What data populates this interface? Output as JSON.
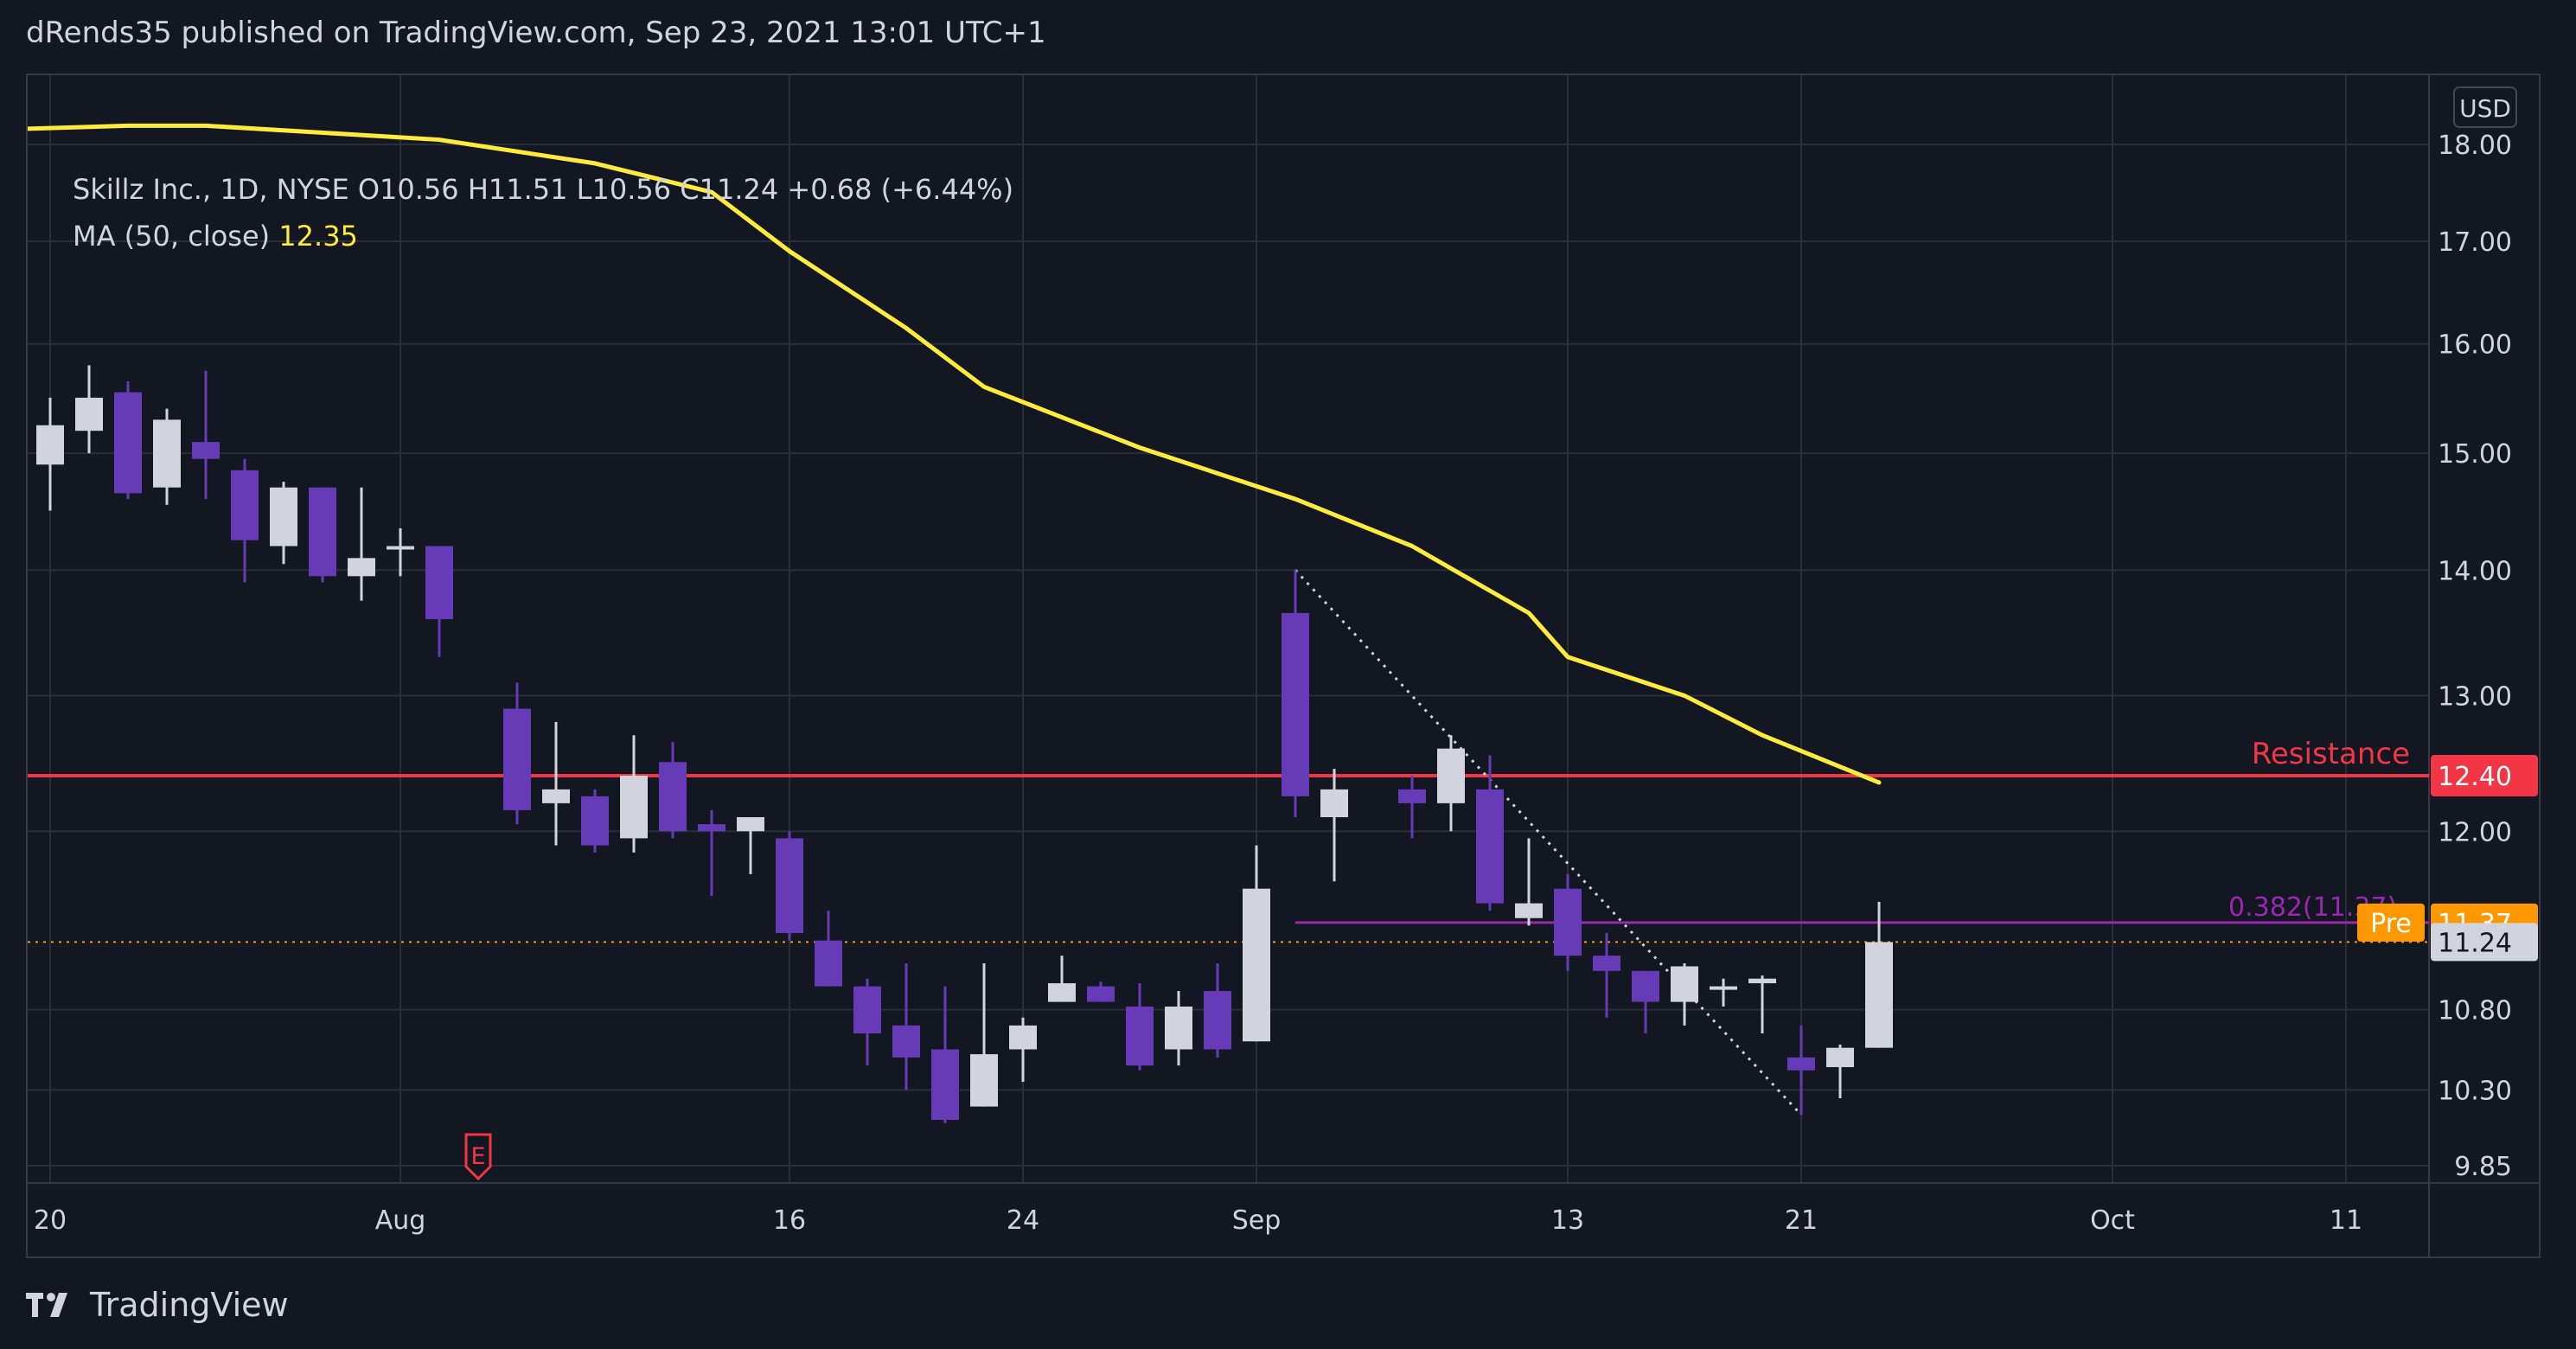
{
  "header": {
    "banner": "dRends35 published on TradingView.com, Sep 23, 2021 13:01 UTC+1"
  },
  "legend": {
    "line1": "Skillz Inc., 1D, NYSE  O10.56  H11.51  L10.56  C11.24  +0.68 (+6.44%)",
    "ma_label": "MA (50, close)",
    "ma_value": "12.35"
  },
  "price_axis": {
    "currency_button": "USD",
    "ticks": [
      "18.00",
      "17.00",
      "16.00",
      "15.00",
      "14.00",
      "13.00",
      "12.00",
      "10.80",
      "10.30",
      "9.85"
    ]
  },
  "time_axis": {
    "ticks": [
      "20",
      "Aug",
      "16",
      "24",
      "Sep",
      "13",
      "21",
      "Oct",
      "11"
    ]
  },
  "annotations": {
    "resistance_label": "Resistance",
    "resistance_price": "12.40",
    "fib_label": "0.382(11.37)",
    "pre_label": "Pre",
    "pre_price": "11.37",
    "last_price": "11.24",
    "earnings_marker": "E"
  },
  "colors": {
    "background": "#131722",
    "up_candle": "#d1d4dc",
    "down_candle": "#673ab7",
    "ma_line": "#ffeb3b",
    "resistance": "#f23645",
    "fib_line": "#9c27b0",
    "pre_badge": "#ff9800"
  },
  "footer": {
    "brand": "TradingView"
  },
  "chart_data": {
    "type": "candlestick",
    "symbol": "Skillz Inc.",
    "interval": "1D",
    "exchange": "NYSE",
    "scale": "log",
    "ylim": [
      9.85,
      18.2
    ],
    "candles": [
      {
        "date": "2021-07-20",
        "o": 14.9,
        "h": 15.5,
        "l": 14.5,
        "c": 15.25
      },
      {
        "date": "2021-07-21",
        "o": 15.2,
        "h": 15.8,
        "l": 15.0,
        "c": 15.5
      },
      {
        "date": "2021-07-22",
        "o": 15.55,
        "h": 15.65,
        "l": 14.6,
        "c": 14.65
      },
      {
        "date": "2021-07-23",
        "o": 14.7,
        "h": 15.4,
        "l": 14.55,
        "c": 15.3
      },
      {
        "date": "2021-07-26",
        "o": 15.1,
        "h": 15.75,
        "l": 14.6,
        "c": 14.95
      },
      {
        "date": "2021-07-27",
        "o": 14.85,
        "h": 14.95,
        "l": 13.9,
        "c": 14.25
      },
      {
        "date": "2021-07-28",
        "o": 14.2,
        "h": 14.75,
        "l": 14.05,
        "c": 14.7
      },
      {
        "date": "2021-07-29",
        "o": 14.7,
        "h": 14.7,
        "l": 13.9,
        "c": 13.95
      },
      {
        "date": "2021-07-30",
        "o": 13.95,
        "h": 14.7,
        "l": 13.75,
        "c": 14.1
      },
      {
        "date": "2021-08-02",
        "o": 14.2,
        "h": 14.35,
        "l": 13.95,
        "c": 14.2
      },
      {
        "date": "2021-08-03",
        "o": 14.2,
        "h": 14.2,
        "l": 13.3,
        "c": 13.6
      },
      {
        "date": "2021-08-05",
        "o": 12.9,
        "h": 13.1,
        "l": 12.05,
        "c": 12.15
      },
      {
        "date": "2021-08-06",
        "o": 12.2,
        "h": 12.8,
        "l": 11.9,
        "c": 12.3
      },
      {
        "date": "2021-08-09",
        "o": 12.25,
        "h": 12.3,
        "l": 11.85,
        "c": 11.9
      },
      {
        "date": "2021-08-10",
        "o": 11.95,
        "h": 12.7,
        "l": 11.85,
        "c": 12.4
      },
      {
        "date": "2021-08-11",
        "o": 12.5,
        "h": 12.65,
        "l": 11.95,
        "c": 12.0
      },
      {
        "date": "2021-08-12",
        "o": 12.05,
        "h": 12.15,
        "l": 11.55,
        "c": 12.0
      },
      {
        "date": "2021-08-13",
        "o": 12.0,
        "h": 12.1,
        "l": 11.7,
        "c": 12.1
      },
      {
        "date": "2021-08-16",
        "o": 11.95,
        "h": 12.0,
        "l": 11.25,
        "c": 11.3
      },
      {
        "date": "2021-08-17",
        "o": 11.25,
        "h": 11.45,
        "l": 10.95,
        "c": 10.95
      },
      {
        "date": "2021-08-18",
        "o": 10.95,
        "h": 11.0,
        "l": 10.45,
        "c": 10.65
      },
      {
        "date": "2021-08-19",
        "o": 10.7,
        "h": 11.1,
        "l": 10.3,
        "c": 10.5
      },
      {
        "date": "2021-08-20",
        "o": 10.55,
        "h": 10.95,
        "l": 10.1,
        "c": 10.12
      },
      {
        "date": "2021-08-23",
        "o": 10.2,
        "h": 11.1,
        "l": 10.2,
        "c": 10.52
      },
      {
        "date": "2021-08-24",
        "o": 10.55,
        "h": 10.75,
        "l": 10.35,
        "c": 10.7
      },
      {
        "date": "2021-08-25",
        "o": 10.85,
        "h": 11.15,
        "l": 10.85,
        "c": 10.97
      },
      {
        "date": "2021-08-26",
        "o": 10.95,
        "h": 10.98,
        "l": 10.85,
        "c": 10.85
      },
      {
        "date": "2021-08-27",
        "o": 10.82,
        "h": 10.97,
        "l": 10.42,
        "c": 10.45
      },
      {
        "date": "2021-08-30",
        "o": 10.55,
        "h": 10.92,
        "l": 10.45,
        "c": 10.82
      },
      {
        "date": "2021-08-31",
        "o": 10.92,
        "h": 11.1,
        "l": 10.5,
        "c": 10.55
      },
      {
        "date": "2021-09-01",
        "o": 10.6,
        "h": 11.9,
        "l": 10.6,
        "c": 11.6
      },
      {
        "date": "2021-09-02",
        "o": 13.65,
        "h": 14.0,
        "l": 12.1,
        "c": 12.25
      },
      {
        "date": "2021-09-03",
        "o": 12.1,
        "h": 12.45,
        "l": 11.65,
        "c": 12.3
      },
      {
        "date": "2021-09-07",
        "o": 12.3,
        "h": 12.4,
        "l": 11.95,
        "c": 12.2
      },
      {
        "date": "2021-09-08",
        "o": 12.2,
        "h": 12.7,
        "l": 12.0,
        "c": 12.6
      },
      {
        "date": "2021-09-09",
        "o": 12.3,
        "h": 12.55,
        "l": 11.45,
        "c": 11.5
      },
      {
        "date": "2021-09-10",
        "o": 11.4,
        "h": 11.95,
        "l": 11.35,
        "c": 11.5
      },
      {
        "date": "2021-09-13",
        "o": 11.6,
        "h": 11.7,
        "l": 11.05,
        "c": 11.15
      },
      {
        "date": "2021-09-14",
        "o": 11.15,
        "h": 11.3,
        "l": 10.75,
        "c": 11.05
      },
      {
        "date": "2021-09-15",
        "o": 11.05,
        "h": 11.05,
        "l": 10.65,
        "c": 10.85
      },
      {
        "date": "2021-09-16",
        "o": 10.85,
        "h": 11.1,
        "l": 10.7,
        "c": 11.08
      },
      {
        "date": "2021-09-17",
        "o": 10.95,
        "h": 11.0,
        "l": 10.82,
        "c": 10.95
      },
      {
        "date": "2021-09-20",
        "o": 10.97,
        "h": 11.02,
        "l": 10.65,
        "c": 11.0
      },
      {
        "date": "2021-09-21",
        "o": 10.5,
        "h": 10.7,
        "l": 10.15,
        "c": 10.42
      },
      {
        "date": "2021-09-22",
        "o": 10.44,
        "h": 10.58,
        "l": 10.25,
        "c": 10.56
      },
      {
        "date": "2021-09-23",
        "o": 10.56,
        "h": 11.51,
        "l": 10.56,
        "c": 11.24
      }
    ],
    "moving_average": {
      "name": "MA (50, close)",
      "points": [
        {
          "date": "2021-07-16",
          "v": 18.15
        },
        {
          "date": "2021-07-22",
          "v": 18.2
        },
        {
          "date": "2021-07-26",
          "v": 18.2
        },
        {
          "date": "2021-08-03",
          "v": 18.05
        },
        {
          "date": "2021-08-09",
          "v": 17.8
        },
        {
          "date": "2021-08-12",
          "v": 17.5
        },
        {
          "date": "2021-08-16",
          "v": 16.9
        },
        {
          "date": "2021-08-19",
          "v": 16.15
        },
        {
          "date": "2021-08-23",
          "v": 15.6
        },
        {
          "date": "2021-08-27",
          "v": 15.05
        },
        {
          "date": "2021-09-02",
          "v": 14.6
        },
        {
          "date": "2021-09-07",
          "v": 14.2
        },
        {
          "date": "2021-09-10",
          "v": 13.65
        },
        {
          "date": "2021-09-13",
          "v": 13.3
        },
        {
          "date": "2021-09-16",
          "v": 13.0
        },
        {
          "date": "2021-09-20",
          "v": 12.7
        },
        {
          "date": "2021-09-23",
          "v": 12.35
        }
      ]
    },
    "resistance": 12.4,
    "fib_0382": {
      "value": 11.37,
      "from": "2021-09-02",
      "to": "2021-09-23"
    },
    "trendline": {
      "from": {
        "date": "2021-09-02",
        "v": 14.0
      },
      "to": {
        "date": "2021-09-21",
        "v": 10.15
      }
    },
    "earnings": {
      "date": "2021-08-04"
    }
  }
}
